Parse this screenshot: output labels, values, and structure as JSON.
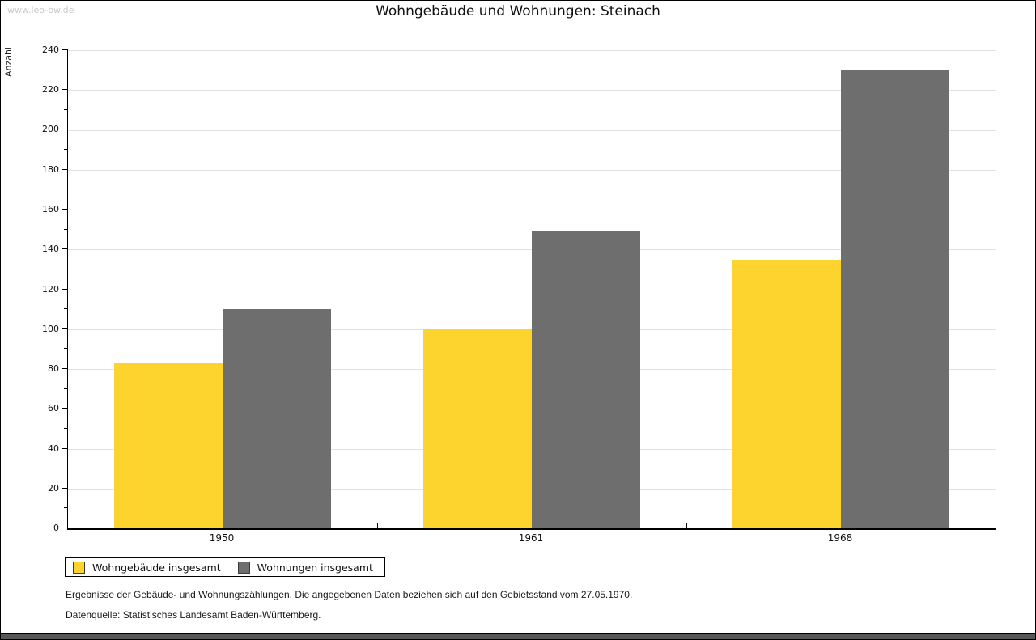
{
  "watermark": "www.leo-bw.de",
  "chart_data": {
    "type": "bar",
    "title": "Wohngebäude und Wohnungen: Steinach",
    "ylabel": "Anzahl",
    "xlabel": "",
    "categories": [
      "1950",
      "1961",
      "1968"
    ],
    "series": [
      {
        "name": "Wohngebäude insgesamt",
        "color": "#FCD42D",
        "values": [
          83,
          100,
          135
        ]
      },
      {
        "name": "Wohnungen insgesamt",
        "color": "#6E6E6E",
        "values": [
          110,
          149,
          230
        ]
      }
    ],
    "ylim": [
      0,
      240
    ],
    "y_major_step": 20,
    "y_minor_step": 10,
    "grid": true,
    "legend_position": "bottom-left"
  },
  "footer": {
    "line1": "Ergebnisse der Gebäude- und Wohnungszählungen. Die angegebenen Daten beziehen sich auf den Gebietsstand vom 27.05.1970.",
    "line2": "Datenquelle: Statistisches Landesamt Baden-Württemberg."
  }
}
